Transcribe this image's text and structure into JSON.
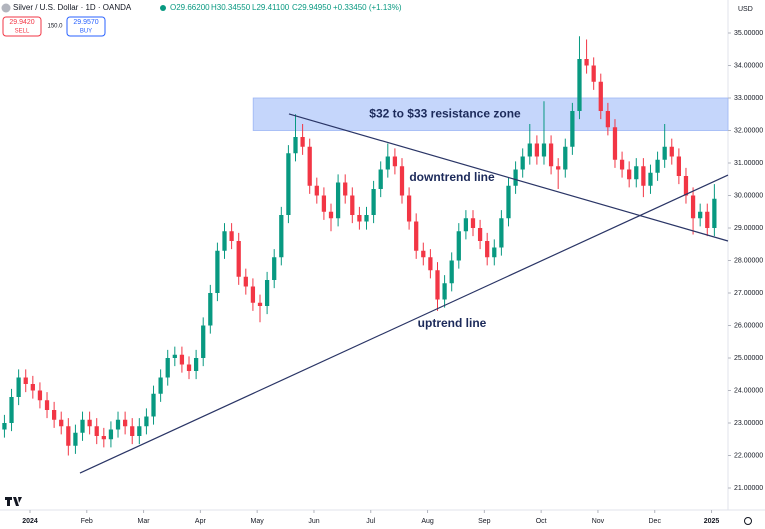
{
  "header": {
    "symbol": "Silver / U.S. Dollar · 1D · OANDA",
    "stats": [
      "O29.66200",
      "H30.34550",
      "L29.41100",
      "C29.94950",
      "+0.33450 (+1.13%)"
    ],
    "sell_price": "29.9420",
    "sell_label": "SELL",
    "spread": "150.0",
    "buy_price": "29.9570",
    "buy_label": "BUY",
    "currency": "USD"
  },
  "chart_data": {
    "type": "candlestick",
    "up_color": "#089981",
    "down_color": "#f23645",
    "xlim": [
      -0.528,
      12.29
    ],
    "ylim": [
      20.5,
      35.6
    ],
    "xticks": [
      {
        "value": 0,
        "label": "2024"
      },
      {
        "value": 1,
        "label": "Feb"
      },
      {
        "value": 2,
        "label": "Mar"
      },
      {
        "value": 3,
        "label": "Apr"
      },
      {
        "value": 4,
        "label": "May"
      },
      {
        "value": 5,
        "label": "Jun"
      },
      {
        "value": 6,
        "label": "Jul"
      },
      {
        "value": 7,
        "label": "Aug"
      },
      {
        "value": 8,
        "label": "Sep"
      },
      {
        "value": 9,
        "label": "Oct"
      },
      {
        "value": 10,
        "label": "Nov"
      },
      {
        "value": 11,
        "label": "Dec"
      },
      {
        "value": 12,
        "label": "2025"
      }
    ],
    "yticks": [
      {
        "value": 21,
        "label": "21.00000"
      },
      {
        "value": 22,
        "label": "22.00000"
      },
      {
        "value": 23,
        "label": "23.00000"
      },
      {
        "value": 24,
        "label": "24.00000"
      },
      {
        "value": 25,
        "label": "25.00000"
      },
      {
        "value": 26,
        "label": "26.00000"
      },
      {
        "value": 27,
        "label": "27.00000"
      },
      {
        "value": 28,
        "label": "28.00000"
      },
      {
        "value": 29,
        "label": "29.00000"
      },
      {
        "value": 30,
        "label": "30.00000"
      },
      {
        "value": 31,
        "label": "31.00000"
      },
      {
        "value": 32,
        "label": "32.00000"
      },
      {
        "value": 33,
        "label": "33.00000"
      },
      {
        "value": 34,
        "label": "34.00000"
      },
      {
        "value": 35,
        "label": "35.00000"
      }
    ],
    "zone": {
      "label": "$32 to $33 resistance zone",
      "range": [
        32,
        33
      ],
      "x_start": 3.93,
      "color": "#c5d6fb"
    },
    "trendlines": [
      {
        "label": "downtrend line",
        "x": [
          4.56,
          12.29
        ],
        "y": [
          32.51,
          28.6
        ],
        "color": "#2a3566"
      },
      {
        "label": "uptrend line",
        "x": [
          0.88,
          12.29
        ],
        "y": [
          21.46,
          30.63
        ],
        "color": "#2a3566"
      }
    ],
    "x": [
      -0.45,
      -0.325,
      -0.2,
      -0.075,
      0.05,
      0.175,
      0.3,
      0.425,
      0.55,
      0.675,
      0.8,
      0.925,
      1.05,
      1.175,
      1.3,
      1.425,
      1.55,
      1.675,
      1.8,
      1.925,
      2.05,
      2.175,
      2.3,
      2.425,
      2.55,
      2.675,
      2.8,
      2.925,
      3.05,
      3.175,
      3.3,
      3.425,
      3.55,
      3.675,
      3.8,
      3.925,
      4.05,
      4.175,
      4.3,
      4.425,
      4.55,
      4.675,
      4.8,
      4.925,
      5.05,
      5.175,
      5.3,
      5.425,
      5.55,
      5.675,
      5.8,
      5.925,
      6.05,
      6.175,
      6.3,
      6.425,
      6.55,
      6.675,
      6.8,
      6.925,
      7.05,
      7.175,
      7.3,
      7.425,
      7.55,
      7.675,
      7.8,
      7.925,
      8.05,
      8.175,
      8.3,
      8.425,
      8.55,
      8.675,
      8.8,
      8.925,
      9.05,
      9.175,
      9.3,
      9.425,
      9.55,
      9.675,
      9.8,
      9.925,
      10.05,
      10.175,
      10.3,
      10.425,
      10.55,
      10.675,
      10.8,
      10.925,
      11.05,
      11.175,
      11.3,
      11.425,
      11.55,
      11.675,
      11.8,
      11.925,
      12.05
    ],
    "open": [
      22.8,
      23.0,
      23.8,
      24.4,
      24.2,
      24.0,
      23.7,
      23.4,
      23.1,
      22.9,
      22.3,
      22.7,
      23.1,
      22.9,
      22.6,
      22.5,
      22.8,
      23.1,
      22.9,
      22.6,
      22.9,
      23.2,
      23.9,
      24.4,
      25.0,
      25.1,
      24.8,
      24.6,
      25.0,
      26.0,
      27.0,
      28.3,
      28.9,
      28.6,
      27.5,
      27.2,
      26.7,
      26.6,
      27.4,
      28.1,
      29.4,
      31.3,
      31.8,
      31.5,
      30.3,
      30.0,
      29.5,
      29.3,
      30.4,
      30.0,
      29.4,
      29.2,
      29.4,
      30.2,
      30.8,
      31.2,
      30.9,
      30.0,
      29.2,
      28.3,
      28.1,
      27.7,
      26.8,
      27.3,
      28.0,
      28.9,
      29.3,
      29.0,
      28.6,
      28.1,
      28.4,
      29.3,
      30.3,
      30.8,
      31.2,
      31.6,
      31.2,
      31.6,
      30.9,
      30.8,
      31.5,
      32.6,
      34.2,
      34.0,
      33.5,
      32.6,
      32.1,
      31.1,
      30.8,
      30.5,
      30.9,
      30.3,
      30.7,
      31.1,
      31.5,
      31.2,
      30.6,
      30.0,
      29.3,
      29.5,
      29.0
    ],
    "high": [
      23.25,
      24.05,
      24.65,
      24.65,
      24.45,
      24.25,
      23.95,
      23.65,
      23.35,
      23.15,
      22.95,
      23.35,
      23.35,
      23.15,
      22.85,
      23.05,
      23.35,
      23.35,
      23.15,
      23.15,
      23.45,
      24.15,
      24.65,
      25.25,
      25.35,
      25.35,
      25.05,
      25.25,
      26.25,
      27.25,
      28.55,
      29.15,
      29.15,
      28.85,
      27.75,
      27.45,
      26.95,
      27.65,
      28.35,
      29.65,
      31.55,
      32.5,
      32.2,
      31.75,
      30.55,
      30.25,
      29.75,
      30.65,
      30.65,
      30.25,
      29.65,
      29.65,
      30.45,
      31.05,
      31.6,
      31.45,
      31.15,
      30.25,
      29.45,
      28.55,
      28.35,
      27.95,
      27.55,
      28.25,
      29.15,
      29.55,
      29.55,
      29.25,
      28.85,
      28.65,
      29.55,
      30.55,
      31.05,
      31.45,
      32.2,
      31.85,
      32.9,
      31.85,
      31.15,
      31.75,
      32.85,
      34.9,
      34.8,
      34.25,
      33.75,
      32.85,
      32.35,
      31.35,
      31.05,
      31.15,
      31.15,
      30.95,
      31.35,
      32.2,
      31.75,
      31.45,
      30.85,
      30.25,
      29.75,
      29.75,
      30.35
    ],
    "low": [
      22.55,
      22.75,
      23.55,
      23.95,
      23.75,
      23.45,
      23.15,
      22.85,
      22.65,
      22.0,
      22.05,
      22.45,
      22.65,
      22.35,
      22.25,
      22.25,
      22.55,
      22.65,
      22.35,
      22.35,
      22.65,
      22.95,
      23.65,
      24.15,
      24.75,
      24.55,
      24.35,
      24.35,
      24.75,
      25.75,
      26.75,
      28.05,
      28.35,
      27.25,
      26.95,
      26.45,
      26.1,
      26.35,
      27.15,
      27.85,
      29.15,
      31.05,
      31.25,
      30.05,
      29.75,
      29.25,
      28.9,
      29.05,
      29.75,
      29.15,
      28.95,
      28.95,
      29.15,
      29.95,
      30.55,
      30.65,
      29.75,
      28.95,
      28.05,
      27.85,
      27.45,
      26.45,
      26.55,
      27.05,
      27.75,
      28.65,
      28.75,
      28.35,
      27.85,
      27.85,
      28.15,
      29.05,
      30.05,
      30.55,
      30.95,
      30.95,
      30.95,
      30.65,
      30.2,
      30.55,
      31.25,
      32.35,
      33.75,
      33.25,
      32.35,
      31.85,
      30.85,
      30.55,
      30.25,
      30.25,
      29.95,
      30.05,
      30.45,
      30.85,
      30.95,
      30.35,
      29.75,
      28.8,
      29.05,
      28.75,
      28.75
    ],
    "close": [
      23.0,
      23.8,
      24.4,
      24.2,
      24.0,
      23.7,
      23.4,
      23.1,
      22.9,
      22.3,
      22.7,
      23.1,
      22.9,
      22.6,
      22.5,
      22.8,
      23.1,
      22.9,
      22.6,
      22.9,
      23.2,
      23.9,
      24.4,
      25.0,
      25.1,
      24.8,
      24.6,
      25.0,
      26.0,
      27.0,
      28.3,
      28.9,
      28.6,
      27.5,
      27.2,
      26.7,
      26.6,
      27.4,
      28.1,
      29.4,
      31.3,
      31.8,
      31.5,
      30.3,
      30.0,
      29.5,
      29.3,
      30.4,
      30.0,
      29.4,
      29.2,
      29.4,
      30.2,
      30.8,
      31.2,
      30.9,
      30.0,
      29.2,
      28.3,
      28.1,
      27.7,
      26.8,
      27.3,
      28.0,
      28.9,
      29.3,
      29.0,
      28.6,
      28.1,
      28.4,
      29.3,
      30.3,
      30.8,
      31.2,
      31.6,
      31.2,
      31.6,
      30.9,
      30.8,
      31.5,
      32.6,
      34.2,
      34.0,
      33.5,
      32.6,
      32.1,
      31.1,
      30.8,
      30.5,
      30.9,
      30.3,
      30.7,
      31.1,
      31.5,
      31.2,
      30.6,
      30.0,
      29.3,
      29.5,
      29.0,
      29.9
    ]
  }
}
